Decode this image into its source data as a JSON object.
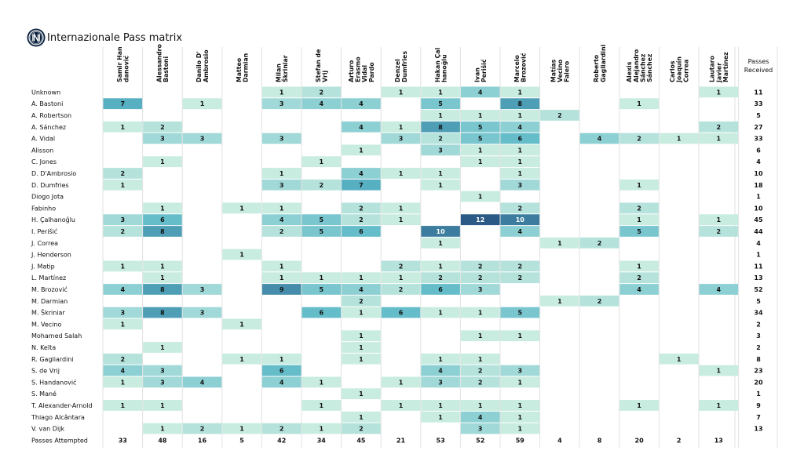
{
  "title": "Internazionale Pass matrix",
  "chart_data": {
    "type": "heatmap",
    "title": "Internazionale Pass matrix",
    "columns": [
      "Samir Han danović",
      "Alessandro Bastoni",
      "Danilo D' Ambrosio",
      "Matteo Darmian",
      "Milan Škriniar",
      "Stefan de Vrij",
      "Arturo Erasmo Vidal Pardo",
      "Denzel Dumfries",
      "Hakan Çal hanoğlu",
      "Ivan Perišić",
      "Marcelo Brozović",
      "Matías Vecino Falero",
      "Roberto Gagliardini",
      "Alexis Alejandro Sánchez Sánchez",
      "Carlos Joaquín Correa",
      "Lautaro Javier Martínez"
    ],
    "column_label_lines": [
      [
        "Samir Han",
        "danović"
      ],
      [
        "Alessandro",
        "Bastoni"
      ],
      [
        "Danilo D'",
        "Ambrosio"
      ],
      [
        "Matteo",
        "Darmian"
      ],
      [
        "Milan",
        "Škriniar"
      ],
      [
        "Stefan de",
        "Vrij"
      ],
      [
        "Arturo",
        "Erasmo",
        "Vidal",
        "Pardo"
      ],
      [
        "Denzel",
        "Dumfries"
      ],
      [
        "Hakan Çal",
        "hanoğlu"
      ],
      [
        "Ivan",
        "Perišić"
      ],
      [
        "Marcelo",
        "Brozović"
      ],
      [
        "Matías",
        "Vecino",
        "Falero"
      ],
      [
        "Roberto",
        "Gagliardini"
      ],
      [
        "Alexis",
        "Alejandro",
        "Sánchez",
        "Sánchez"
      ],
      [
        "Carlos",
        "Joaquín",
        "Correa"
      ],
      [
        "Lautaro",
        "Javier",
        "Martínez"
      ]
    ],
    "total_column_label": [
      "Passes",
      "Received"
    ],
    "rows": [
      {
        "name": "Unknown",
        "values": [
          null,
          null,
          null,
          null,
          1,
          2,
          null,
          1,
          1,
          4,
          1,
          null,
          null,
          null,
          null,
          1
        ],
        "total": 11
      },
      {
        "name": "A. Bastoni",
        "values": [
          7,
          null,
          1,
          null,
          3,
          4,
          4,
          null,
          5,
          null,
          8,
          null,
          null,
          1,
          null,
          null
        ],
        "total": 33
      },
      {
        "name": "A. Robertson",
        "values": [
          null,
          null,
          null,
          null,
          null,
          null,
          null,
          null,
          1,
          1,
          1,
          2,
          null,
          null,
          null,
          null
        ],
        "total": 5
      },
      {
        "name": "A. Sánchez",
        "values": [
          1,
          2,
          null,
          null,
          null,
          null,
          4,
          1,
          8,
          5,
          4,
          null,
          null,
          null,
          null,
          2
        ],
        "total": 27
      },
      {
        "name": "A. Vidal",
        "values": [
          null,
          3,
          3,
          null,
          3,
          null,
          null,
          3,
          2,
          5,
          6,
          null,
          4,
          2,
          1,
          1
        ],
        "total": 33
      },
      {
        "name": "Alisson",
        "values": [
          null,
          null,
          null,
          null,
          null,
          null,
          1,
          null,
          3,
          1,
          1,
          null,
          null,
          null,
          null,
          null
        ],
        "total": 6
      },
      {
        "name": "C. Jones",
        "values": [
          null,
          1,
          null,
          null,
          null,
          1,
          null,
          null,
          null,
          1,
          1,
          null,
          null,
          null,
          null,
          null
        ],
        "total": 4
      },
      {
        "name": "D. D'Ambrosio",
        "values": [
          2,
          null,
          null,
          null,
          1,
          null,
          4,
          1,
          1,
          null,
          1,
          null,
          null,
          null,
          null,
          null
        ],
        "total": 10
      },
      {
        "name": "D. Dumfries",
        "values": [
          1,
          null,
          null,
          null,
          3,
          2,
          7,
          null,
          1,
          null,
          3,
          null,
          null,
          1,
          null,
          null
        ],
        "total": 18
      },
      {
        "name": "Diogo Jota",
        "values": [
          null,
          null,
          null,
          null,
          null,
          null,
          null,
          null,
          null,
          1,
          null,
          null,
          null,
          null,
          null,
          null
        ],
        "total": 1
      },
      {
        "name": "Fabinho",
        "values": [
          null,
          1,
          null,
          1,
          1,
          null,
          2,
          1,
          null,
          null,
          2,
          null,
          null,
          2,
          null,
          null
        ],
        "total": 10
      },
      {
        "name": "H. Çalhanoğlu",
        "values": [
          3,
          6,
          null,
          null,
          4,
          5,
          2,
          1,
          null,
          12,
          10,
          null,
          null,
          1,
          null,
          1
        ],
        "total": 45
      },
      {
        "name": "I. Perišić",
        "values": [
          2,
          8,
          null,
          null,
          2,
          5,
          6,
          null,
          10,
          null,
          4,
          null,
          null,
          5,
          null,
          2
        ],
        "total": 44
      },
      {
        "name": "J. Correa",
        "values": [
          null,
          null,
          null,
          null,
          null,
          null,
          null,
          null,
          1,
          null,
          null,
          1,
          2,
          null,
          null,
          null
        ],
        "total": 4
      },
      {
        "name": "J. Henderson",
        "values": [
          null,
          null,
          null,
          1,
          null,
          null,
          null,
          null,
          null,
          null,
          null,
          null,
          null,
          null,
          null,
          null
        ],
        "total": 1
      },
      {
        "name": "J. Matip",
        "values": [
          1,
          1,
          null,
          null,
          1,
          null,
          null,
          2,
          1,
          2,
          2,
          null,
          null,
          1,
          null,
          null
        ],
        "total": 11
      },
      {
        "name": "L. Martínez",
        "values": [
          null,
          1,
          null,
          null,
          1,
          1,
          1,
          1,
          2,
          2,
          2,
          null,
          null,
          2,
          null,
          null
        ],
        "total": 13
      },
      {
        "name": "M. Brozović",
        "values": [
          4,
          8,
          3,
          null,
          9,
          5,
          4,
          2,
          6,
          3,
          null,
          null,
          null,
          4,
          null,
          4
        ],
        "total": 52
      },
      {
        "name": "M. Darmian",
        "values": [
          null,
          null,
          null,
          null,
          null,
          null,
          2,
          null,
          null,
          null,
          null,
          1,
          2,
          null,
          null,
          null
        ],
        "total": 5
      },
      {
        "name": "M. Škriniar",
        "values": [
          3,
          8,
          3,
          null,
          null,
          6,
          1,
          6,
          1,
          1,
          5,
          null,
          null,
          null,
          null,
          null
        ],
        "total": 34
      },
      {
        "name": "M. Vecino",
        "values": [
          1,
          null,
          null,
          1,
          null,
          null,
          null,
          null,
          null,
          null,
          null,
          null,
          null,
          null,
          null,
          null
        ],
        "total": 2
      },
      {
        "name": "Mohamed Salah",
        "values": [
          null,
          null,
          null,
          null,
          null,
          null,
          1,
          null,
          null,
          1,
          1,
          null,
          null,
          null,
          null,
          null
        ],
        "total": 3
      },
      {
        "name": "N. Keïta",
        "values": [
          null,
          1,
          null,
          null,
          null,
          null,
          1,
          null,
          null,
          null,
          null,
          null,
          null,
          null,
          null,
          null
        ],
        "total": 2
      },
      {
        "name": "R. Gagliardini",
        "values": [
          2,
          null,
          null,
          1,
          1,
          null,
          1,
          null,
          1,
          1,
          null,
          null,
          null,
          null,
          1,
          null
        ],
        "total": 8
      },
      {
        "name": "S. de Vrij",
        "values": [
          4,
          3,
          null,
          null,
          6,
          null,
          null,
          null,
          4,
          2,
          3,
          null,
          null,
          null,
          null,
          1
        ],
        "total": 23
      },
      {
        "name": "S. Handanović",
        "values": [
          1,
          3,
          4,
          null,
          4,
          1,
          null,
          1,
          3,
          2,
          1,
          null,
          null,
          null,
          null,
          null
        ],
        "total": 20
      },
      {
        "name": "S. Mané",
        "values": [
          null,
          null,
          null,
          null,
          null,
          null,
          1,
          null,
          null,
          null,
          null,
          null,
          null,
          null,
          null,
          null
        ],
        "total": 1
      },
      {
        "name": "T. Alexander-Arnold",
        "values": [
          1,
          1,
          null,
          null,
          null,
          1,
          null,
          1,
          1,
          1,
          1,
          null,
          null,
          1,
          null,
          1
        ],
        "total": 9
      },
      {
        "name": "Thiago Alcântara",
        "values": [
          null,
          null,
          null,
          null,
          null,
          null,
          1,
          null,
          1,
          4,
          1,
          null,
          null,
          null,
          null,
          null
        ],
        "total": 7
      },
      {
        "name": "V. van Dijk",
        "values": [
          null,
          1,
          2,
          1,
          2,
          1,
          2,
          null,
          null,
          3,
          1,
          null,
          null,
          null,
          null,
          null
        ],
        "total": 13
      }
    ],
    "totals_row_label": "Passes Attempted",
    "column_totals": [
      33,
      48,
      16,
      5,
      42,
      34,
      45,
      21,
      53,
      52,
      59,
      4,
      8,
      20,
      2,
      13
    ],
    "color_scale": {
      "low": "#c9ece1",
      "mid": "#5bb8c8",
      "high": "#2b5a86",
      "max": 12
    },
    "grid": false
  }
}
